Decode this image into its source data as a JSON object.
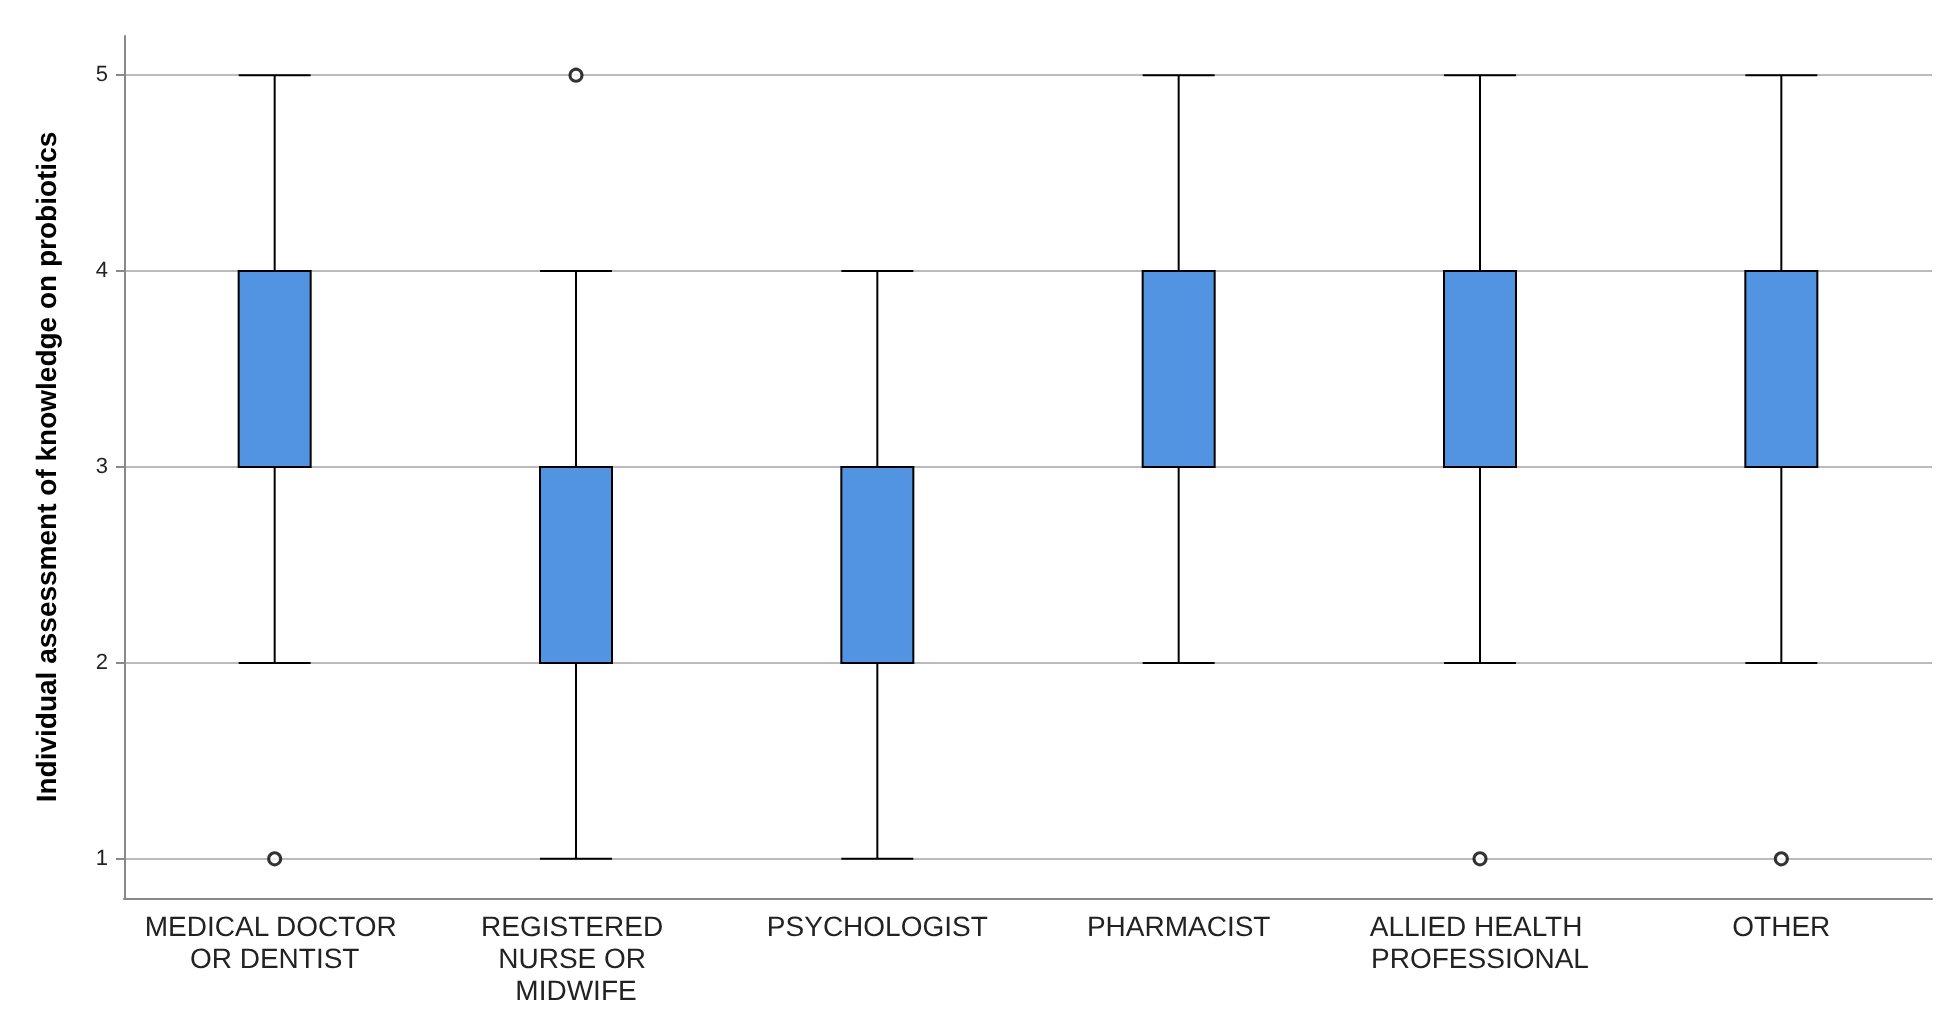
{
  "chart_data": {
    "type": "box",
    "ylabel": "Individual assessment of knowledge on probiotics",
    "categories": [
      "MEDICAL DOCTOR OR DENTIST",
      "REGISTERED NURSE OR MIDWIFE",
      "PSYCHOLOGIST",
      "PHARMACIST",
      "ALLIED HEALTH PROFESSIONAL",
      "OTHER"
    ],
    "color": "#5294e2",
    "boxes": [
      {
        "low": 2,
        "q1": 3,
        "median": 3,
        "q3": 4,
        "high": 5,
        "outliers": [
          1
        ]
      },
      {
        "low": 1,
        "q1": 2,
        "median": 3,
        "q3": 3,
        "high": 4,
        "outliers": [
          5
        ]
      },
      {
        "low": 1,
        "q1": 2,
        "median": 2,
        "q3": 3,
        "high": 4
      },
      {
        "low": 2,
        "q1": 3,
        "median": 4,
        "q3": 4,
        "high": 5
      },
      {
        "low": 2,
        "q1": 3,
        "median": 4,
        "q3": 4,
        "high": 5,
        "outliers": [
          1
        ]
      },
      {
        "low": 2,
        "q1": 3,
        "median": 4,
        "q3": 4,
        "high": 5,
        "outliers": [
          1
        ]
      }
    ],
    "ylim": [
      0.8,
      5.2
    ],
    "yticks": [
      1,
      2,
      3,
      4,
      5
    ],
    "grid": "y"
  }
}
